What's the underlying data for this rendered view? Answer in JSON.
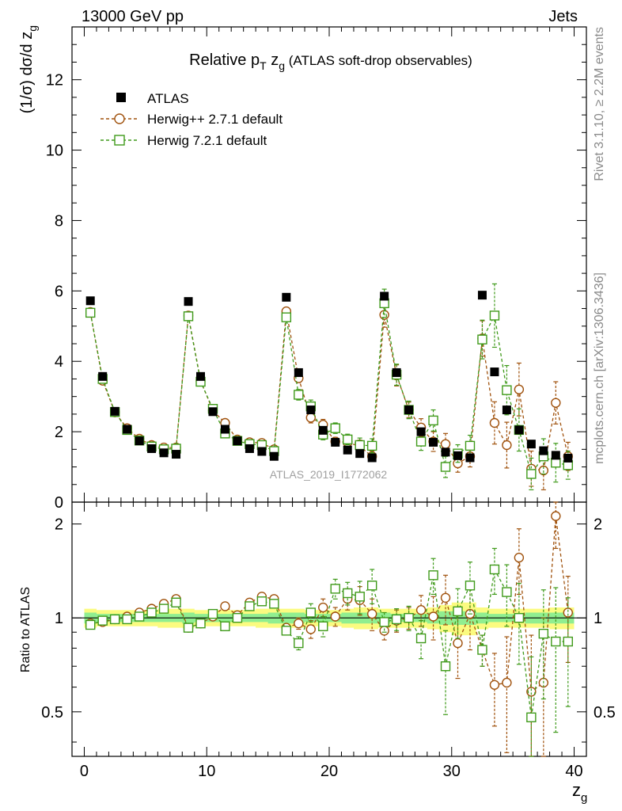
{
  "header": {
    "left": "13000 GeV pp",
    "right": "Jets"
  },
  "title": {
    "main": "Relative p",
    "sub_T": "T",
    "mid": " z",
    "sub_g": "g",
    "suffix": " (ATLAS soft-drop observables)"
  },
  "watermark": "ATLAS_2019_I1772062",
  "side_texts": {
    "rivet": "Rivet 3.1.10, ≥ 2.2M events",
    "mcplots": "mcplots.cern.ch [arXiv:1306.3436]"
  },
  "ylabel_main": "(1/σ) dσ/d z",
  "ylabel_main_sub": "g",
  "ylabel_ratio": "Ratio to ATLAS",
  "xlabel": "z",
  "xlabel_sub": "g",
  "colors": {
    "atlas": "#000000",
    "herwigpp": "#a0520d",
    "herwig7": "#3f9a1a",
    "band_inner": "#90ee90",
    "band_outer": "#fbfb80"
  },
  "chart_data": {
    "type": "scatter",
    "x": [
      0.5,
      1.5,
      2.5,
      3.5,
      4.5,
      5.5,
      6.5,
      7.5,
      8.5,
      9.5,
      10.5,
      11.5,
      12.5,
      13.5,
      14.5,
      15.5,
      16.5,
      17.5,
      18.5,
      19.5,
      20.5,
      21.5,
      22.5,
      23.5,
      24.5,
      25.5,
      26.5,
      27.5,
      28.5,
      29.5,
      30.5,
      31.5,
      32.5,
      33.5,
      34.5,
      35.5,
      36.5,
      37.5,
      38.5,
      39.5
    ],
    "xlim": [
      -1,
      41
    ],
    "ylim": [
      0,
      13.5
    ],
    "ratio_ylim": [
      0.36,
      2.35
    ],
    "xticks": [
      0,
      10,
      20,
      30,
      40
    ],
    "yticks_main": [
      0,
      2,
      4,
      6,
      8,
      10,
      12
    ],
    "yticks_ratio": [
      0.5,
      1,
      2
    ],
    "series": [
      {
        "name": "ATLAS",
        "marker": "square-filled",
        "values": [
          5.72,
          3.57,
          2.58,
          2.07,
          1.74,
          1.52,
          1.4,
          1.36,
          5.7,
          3.57,
          2.57,
          2.07,
          1.74,
          1.52,
          1.44,
          1.3,
          5.82,
          3.68,
          2.62,
          2.04,
          1.7,
          1.48,
          1.38,
          1.26,
          5.85,
          3.68,
          2.62,
          2.0,
          1.7,
          1.42,
          1.32,
          1.26,
          5.88,
          3.7,
          2.62,
          2.05,
          1.65,
          1.46,
          1.33,
          1.25
        ],
        "ratio_band_inner": [
          0.04,
          0.03,
          0.03,
          0.03,
          0.03,
          0.03,
          0.03,
          0.03,
          0.04,
          0.03,
          0.03,
          0.03,
          0.03,
          0.03,
          0.03,
          0.04,
          0.04,
          0.04,
          0.03,
          0.03,
          0.03,
          0.04,
          0.04,
          0.04,
          0.04,
          0.03,
          0.03,
          0.03,
          0.04,
          0.05,
          0.05,
          0.05,
          0.04,
          0.03,
          0.03,
          0.03,
          0.04,
          0.04,
          0.04,
          0.04
        ],
        "ratio_band_outer": [
          0.07,
          0.06,
          0.06,
          0.06,
          0.06,
          0.06,
          0.07,
          0.07,
          0.07,
          0.06,
          0.06,
          0.06,
          0.06,
          0.06,
          0.07,
          0.07,
          0.07,
          0.07,
          0.06,
          0.06,
          0.06,
          0.07,
          0.08,
          0.08,
          0.07,
          0.07,
          0.07,
          0.07,
          0.08,
          0.1,
          0.12,
          0.12,
          0.08,
          0.07,
          0.07,
          0.07,
          0.07,
          0.07,
          0.08,
          0.08
        ]
      },
      {
        "name": "Herwig++ 2.7.1 default",
        "marker": "circle-open",
        "values": [
          5.4,
          3.45,
          2.55,
          2.1,
          1.8,
          1.62,
          1.55,
          1.55,
          5.3,
          3.45,
          2.6,
          2.25,
          1.78,
          1.7,
          1.68,
          1.5,
          5.42,
          3.52,
          2.4,
          2.2,
          1.72,
          1.7,
          1.58,
          1.3,
          5.32,
          3.6,
          2.62,
          2.12,
          1.72,
          1.65,
          1.1,
          1.3,
          4.65,
          2.25,
          1.62,
          3.2,
          0.95,
          0.9,
          2.82,
          1.3
        ],
        "errors": [
          0.05,
          0.05,
          0.04,
          0.04,
          0.04,
          0.03,
          0.03,
          0.04,
          0.06,
          0.05,
          0.05,
          0.05,
          0.04,
          0.04,
          0.05,
          0.05,
          0.08,
          0.12,
          0.15,
          0.15,
          0.12,
          0.14,
          0.18,
          0.15,
          0.35,
          0.3,
          0.22,
          0.25,
          0.28,
          0.3,
          0.25,
          0.3,
          0.5,
          0.6,
          0.65,
          0.75,
          0.5,
          0.55,
          0.6,
          0.4
        ],
        "ratio": [
          0.96,
          0.97,
          0.99,
          1.01,
          1.04,
          1.07,
          1.11,
          1.15,
          0.93,
          0.96,
          1.01,
          1.09,
          1.02,
          1.12,
          1.17,
          1.15,
          0.93,
          0.96,
          0.92,
          1.08,
          1.01,
          1.15,
          1.14,
          1.03,
          0.91,
          0.98,
          1.0,
          1.06,
          1.01,
          1.16,
          0.83,
          1.03,
          0.79,
          0.61,
          0.62,
          1.56,
          0.58,
          0.62,
          2.12,
          1.04
        ],
        "ratio_errors": [
          0.01,
          0.01,
          0.01,
          0.01,
          0.01,
          0.01,
          0.01,
          0.02,
          0.01,
          0.01,
          0.02,
          0.02,
          0.02,
          0.02,
          0.03,
          0.03,
          0.02,
          0.04,
          0.06,
          0.07,
          0.07,
          0.09,
          0.12,
          0.12,
          0.06,
          0.08,
          0.08,
          0.12,
          0.16,
          0.21,
          0.19,
          0.24,
          0.09,
          0.16,
          0.25,
          0.37,
          0.3,
          0.38,
          0.45,
          0.32
        ]
      },
      {
        "name": "Herwig 7.2.1 default",
        "marker": "square-open",
        "values": [
          5.38,
          3.5,
          2.56,
          2.05,
          1.75,
          1.58,
          1.5,
          1.52,
          5.28,
          3.42,
          2.65,
          1.95,
          1.74,
          1.65,
          1.62,
          1.45,
          5.25,
          3.05,
          2.72,
          1.92,
          2.1,
          1.78,
          1.62,
          1.6,
          5.65,
          3.62,
          2.62,
          1.72,
          2.32,
          1.0,
          1.38,
          1.6,
          4.62,
          5.3,
          3.18,
          2.05,
          0.8,
          1.3,
          1.12,
          1.05
        ],
        "errors": [
          0.05,
          0.05,
          0.04,
          0.04,
          0.04,
          0.03,
          0.03,
          0.04,
          0.06,
          0.05,
          0.05,
          0.05,
          0.04,
          0.04,
          0.05,
          0.05,
          0.08,
          0.15,
          0.18,
          0.15,
          0.15,
          0.15,
          0.2,
          0.2,
          0.4,
          0.3,
          0.25,
          0.25,
          0.3,
          0.3,
          0.25,
          0.3,
          0.55,
          0.9,
          0.7,
          0.6,
          0.45,
          0.5,
          0.55,
          0.4
        ],
        "ratio": [
          0.95,
          0.98,
          0.99,
          0.99,
          1.01,
          1.04,
          1.07,
          1.12,
          0.93,
          0.96,
          1.03,
          0.94,
          1.0,
          1.09,
          1.13,
          1.11,
          0.91,
          0.83,
          1.04,
          0.94,
          1.24,
          1.2,
          1.17,
          1.27,
          0.97,
          0.99,
          1.0,
          0.86,
          1.37,
          0.7,
          1.05,
          1.27,
          0.79,
          1.43,
          1.21,
          1.0,
          0.48,
          0.89,
          0.84,
          0.84
        ],
        "ratio_errors": [
          0.01,
          0.01,
          0.01,
          0.01,
          0.01,
          0.01,
          0.01,
          0.02,
          0.01,
          0.01,
          0.02,
          0.02,
          0.02,
          0.02,
          0.03,
          0.03,
          0.02,
          0.04,
          0.07,
          0.07,
          0.09,
          0.1,
          0.14,
          0.16,
          0.07,
          0.08,
          0.09,
          0.12,
          0.18,
          0.21,
          0.19,
          0.24,
          0.09,
          0.24,
          0.27,
          0.29,
          0.27,
          0.34,
          0.41,
          0.32
        ]
      }
    ]
  }
}
